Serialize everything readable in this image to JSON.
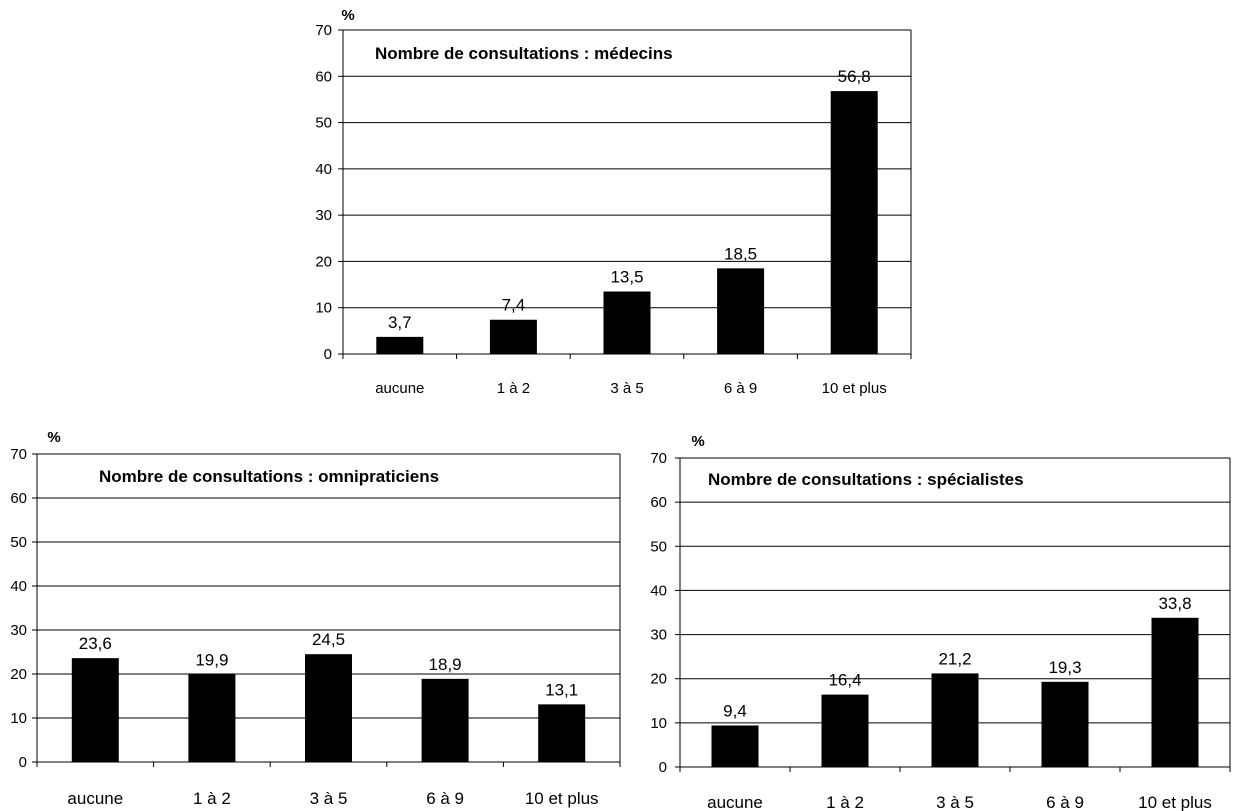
{
  "chart_data": [
    {
      "type": "bar",
      "title": "Nombre de consultations : médecins",
      "ylabel": "%",
      "xlabel": "",
      "ylim": [
        0,
        70
      ],
      "yticks": [
        0,
        10,
        20,
        30,
        40,
        50,
        60,
        70
      ],
      "grid": true,
      "categories": [
        "aucune",
        "1 à 2",
        "3 à 5",
        "6 à 9",
        "10 et plus"
      ],
      "values": [
        3.7,
        7.4,
        13.5,
        18.5,
        56.8
      ],
      "data_labels": [
        "3,7",
        "7,4",
        "13,5",
        "18,5",
        "56,8"
      ],
      "bar_color": "#000000"
    },
    {
      "type": "bar",
      "title": "Nombre de consultations : omnipraticiens",
      "ylabel": "%",
      "xlabel": "",
      "ylim": [
        0,
        70
      ],
      "yticks": [
        0,
        10,
        20,
        30,
        40,
        50,
        60,
        70
      ],
      "grid": true,
      "categories": [
        "aucune",
        "1 à 2",
        "3 à 5",
        "6 à 9",
        "10 et plus"
      ],
      "values": [
        23.6,
        19.9,
        24.5,
        18.9,
        13.1
      ],
      "data_labels": [
        "23,6",
        "19,9",
        "24,5",
        "18,9",
        "13,1"
      ],
      "bar_color": "#000000"
    },
    {
      "type": "bar",
      "title": "Nombre de consultations : spécialistes",
      "ylabel": "%",
      "xlabel": "",
      "ylim": [
        0,
        70
      ],
      "yticks": [
        0,
        10,
        20,
        30,
        40,
        50,
        60,
        70
      ],
      "grid": true,
      "categories": [
        "aucune",
        "1 à 2",
        "3 à 5",
        "6 à 9",
        "10 et plus"
      ],
      "values": [
        9.4,
        16.4,
        21.2,
        19.3,
        33.8
      ],
      "data_labels": [
        "9,4",
        "16,4",
        "21,2",
        "19,3",
        "33,8"
      ],
      "bar_color": "#000000"
    }
  ]
}
